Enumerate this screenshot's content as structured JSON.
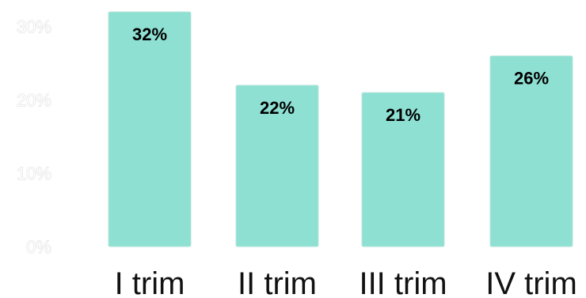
{
  "chart_data": {
    "type": "bar",
    "categories": [
      "I trim",
      "II trim",
      "III trim",
      "IV trim"
    ],
    "values": [
      32,
      22,
      21,
      26
    ],
    "data_labels": [
      "32%",
      "22%",
      "21%",
      "26%"
    ],
    "y_ticks": [
      "0%",
      "10%",
      "20%",
      "30%"
    ],
    "y_tick_values": [
      0,
      10,
      20,
      30
    ],
    "ylim": [
      0,
      32
    ],
    "grid": false,
    "legend": "none",
    "title": "",
    "xlabel": "",
    "ylabel": "",
    "bar_color": "#8ee0d3",
    "ytick_color": "#ffffff",
    "ytick_outline_color": "#d8d8d8"
  }
}
